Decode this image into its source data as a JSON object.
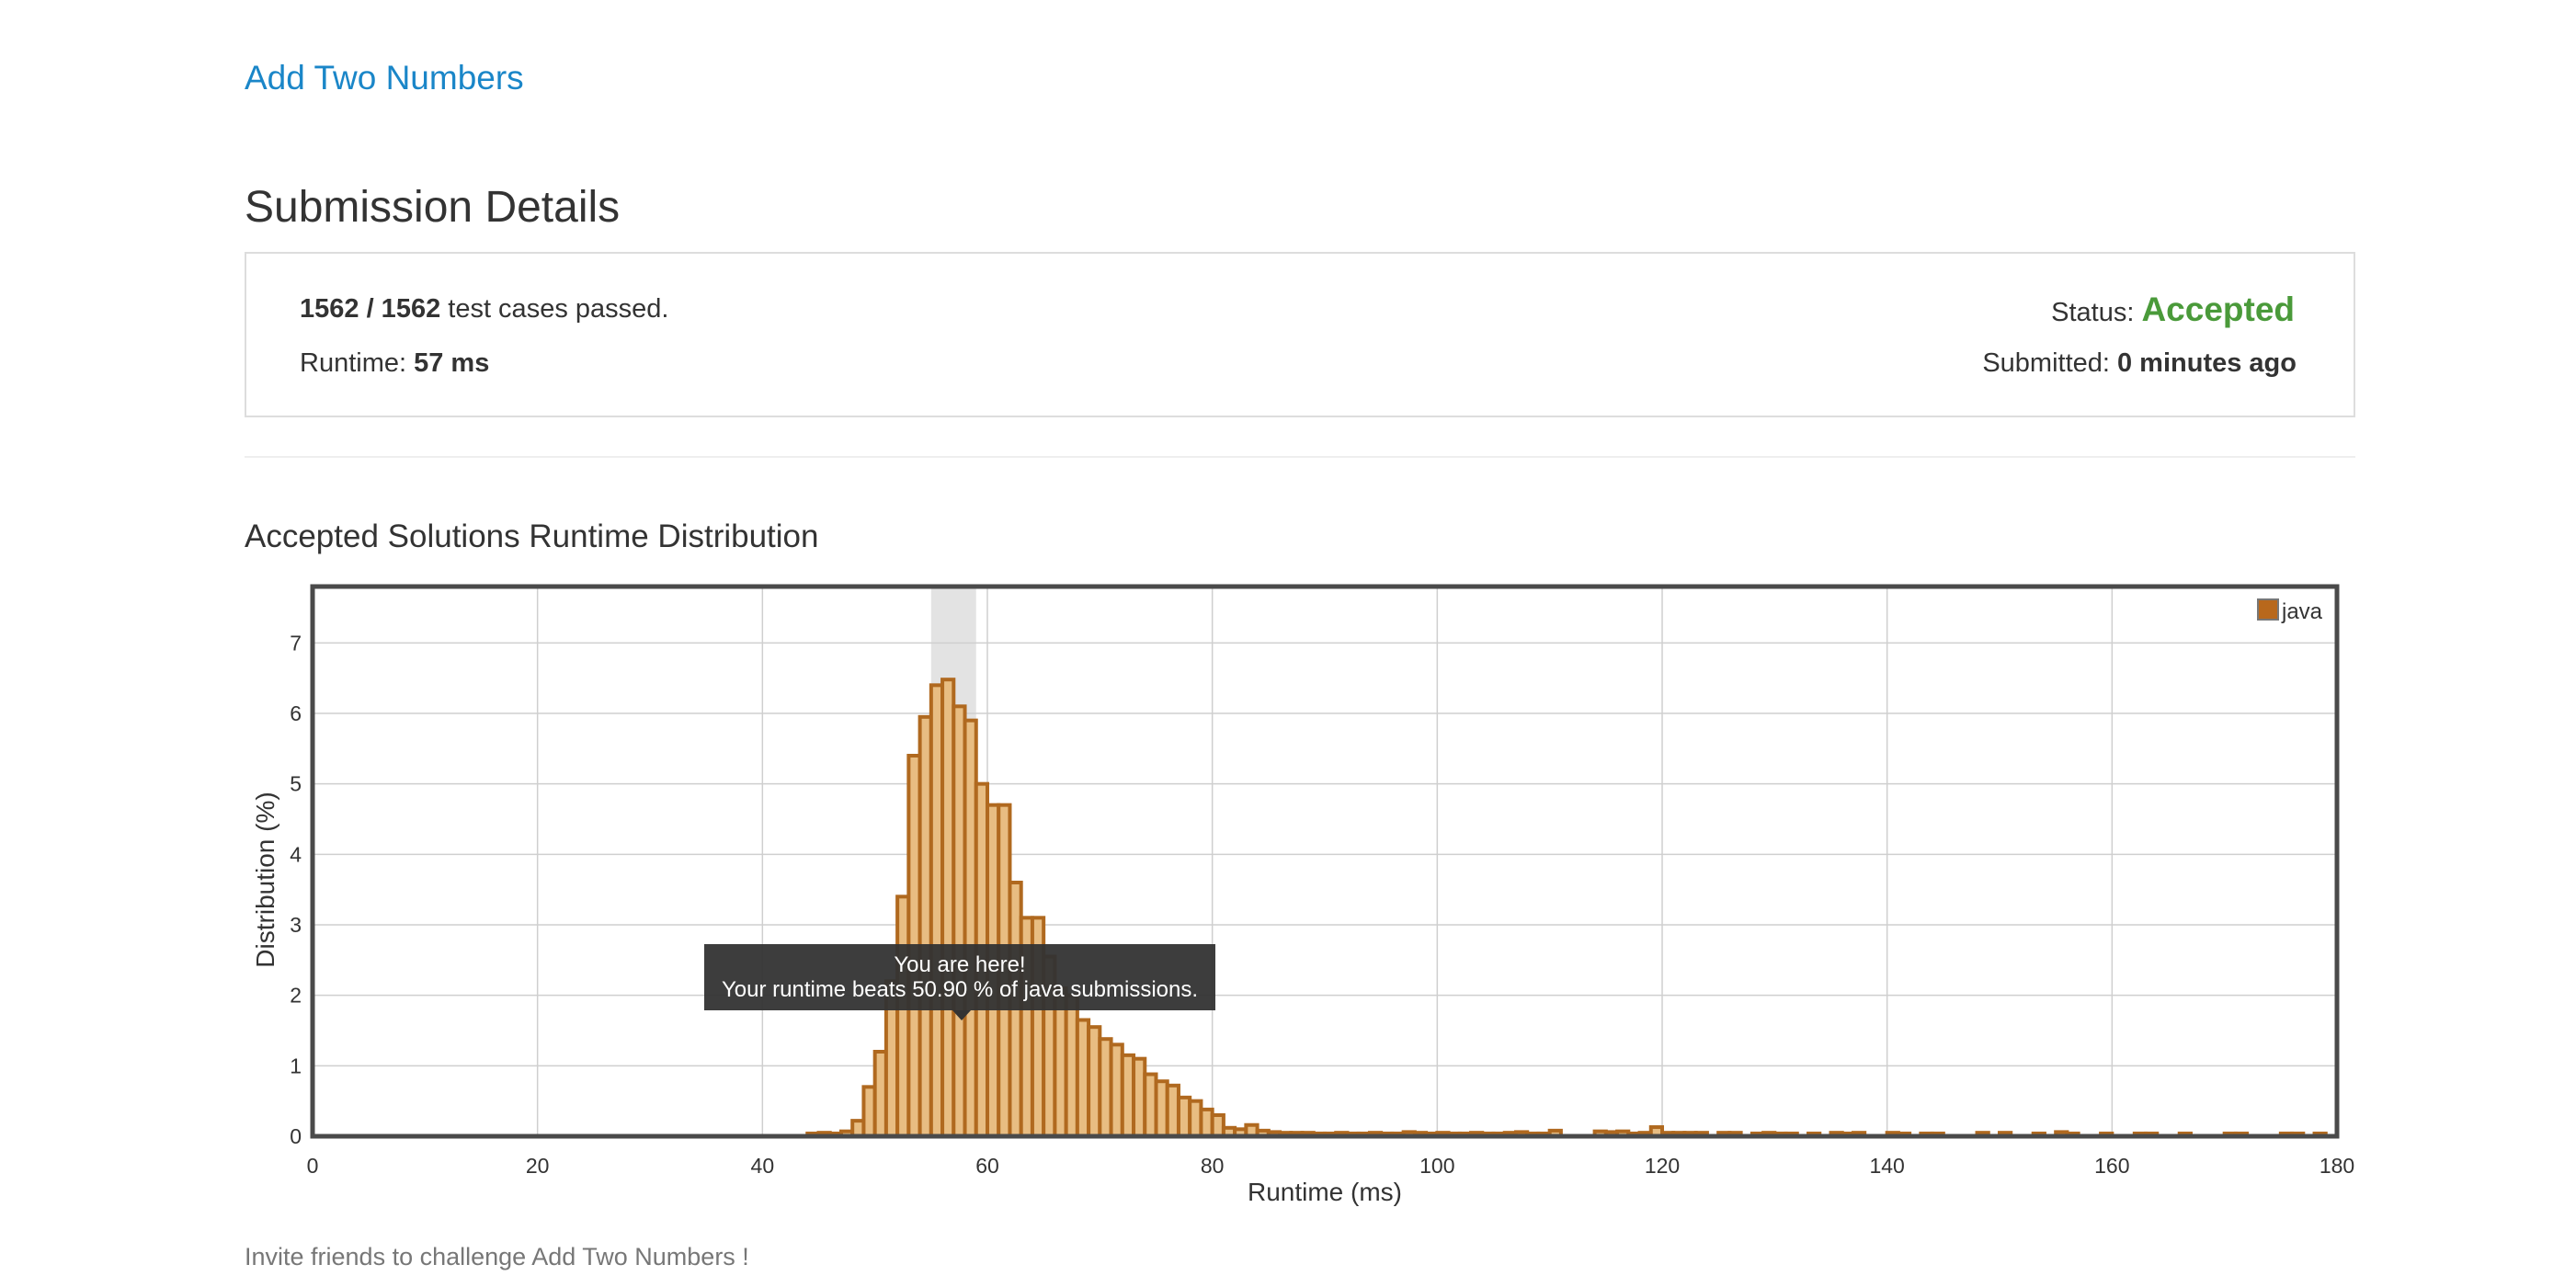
{
  "problem": {
    "title": "Add Two Numbers"
  },
  "header": {
    "title": "Submission Details"
  },
  "details": {
    "cases_passed": "1562 / 1562",
    "cases_suffix": " test cases passed.",
    "runtime_label": "Runtime: ",
    "runtime_value": "57 ms",
    "status_label": "Status: ",
    "status_value": "Accepted",
    "submitted_label": "Submitted: ",
    "submitted_value": "0 minutes ago"
  },
  "colors": {
    "link": "#1a86c8",
    "accepted": "#4a9a3a",
    "bar_fill": "#e8bd82",
    "bar_stroke": "#b0691f",
    "legend_swatch": "#b8681c",
    "tooltip_bg": "#333333"
  },
  "chart_data": {
    "type": "bar",
    "title": "Accepted Solutions Runtime Distribution",
    "xlabel": "Runtime (ms)",
    "ylabel": "Distribution (%)",
    "xlim": [
      0,
      180
    ],
    "ylim": [
      0,
      7.8
    ],
    "xticks": [
      0,
      20,
      40,
      60,
      80,
      100,
      120,
      140,
      160,
      180
    ],
    "yticks": [
      0,
      1,
      2,
      3,
      4,
      5,
      6,
      7
    ],
    "grid": true,
    "legend": {
      "position": "top-right",
      "entries": [
        "java"
      ]
    },
    "series": [
      {
        "name": "java",
        "bin_width": 1,
        "x": [
          44,
          45,
          46,
          47,
          48,
          49,
          50,
          51,
          52,
          53,
          54,
          55,
          56,
          57,
          58,
          59,
          60,
          61,
          62,
          63,
          64,
          65,
          66,
          67,
          68,
          69,
          70,
          71,
          72,
          73,
          74,
          75,
          76,
          77,
          78,
          79,
          80,
          81,
          82,
          83,
          84,
          85,
          86,
          87,
          88,
          89,
          90,
          91,
          92,
          93,
          94,
          95,
          96,
          97,
          98,
          99,
          100,
          101,
          102,
          103,
          104,
          105,
          106,
          107,
          108,
          109,
          110,
          114,
          115,
          116,
          117,
          118,
          119,
          120,
          121,
          122,
          123,
          125,
          126,
          128,
          129,
          130,
          131,
          133,
          135,
          136,
          137,
          140,
          141,
          143,
          144,
          148,
          150,
          153,
          155,
          156,
          159,
          162,
          163,
          166,
          170,
          171,
          175,
          176,
          178
        ],
        "values": [
          0.04,
          0.05,
          0.04,
          0.07,
          0.22,
          0.7,
          1.2,
          2.2,
          3.4,
          5.4,
          5.95,
          6.4,
          6.48,
          6.1,
          5.9,
          5.0,
          4.7,
          4.7,
          3.6,
          3.1,
          3.1,
          2.55,
          2.1,
          2.0,
          1.65,
          1.55,
          1.38,
          1.3,
          1.15,
          1.1,
          0.88,
          0.78,
          0.72,
          0.55,
          0.5,
          0.38,
          0.3,
          0.12,
          0.1,
          0.16,
          0.08,
          0.06,
          0.05,
          0.05,
          0.05,
          0.04,
          0.04,
          0.05,
          0.04,
          0.04,
          0.05,
          0.04,
          0.04,
          0.06,
          0.05,
          0.04,
          0.05,
          0.04,
          0.04,
          0.05,
          0.04,
          0.04,
          0.05,
          0.06,
          0.04,
          0.04,
          0.08,
          0.07,
          0.06,
          0.07,
          0.04,
          0.05,
          0.13,
          0.05,
          0.05,
          0.05,
          0.05,
          0.05,
          0.05,
          0.04,
          0.05,
          0.04,
          0.04,
          0.04,
          0.05,
          0.04,
          0.05,
          0.05,
          0.04,
          0.04,
          0.04,
          0.05,
          0.05,
          0.04,
          0.06,
          0.04,
          0.04,
          0.04,
          0.04,
          0.04,
          0.04,
          0.04,
          0.04,
          0.04,
          0.04
        ]
      }
    ],
    "highlight_bin": [
      55,
      59
    ],
    "tooltip": {
      "line1": "You are here!",
      "line2": "Your runtime beats 50.90 % of java submissions."
    }
  },
  "footer": {
    "text": "Invite friends to challenge Add Two Numbers !"
  }
}
